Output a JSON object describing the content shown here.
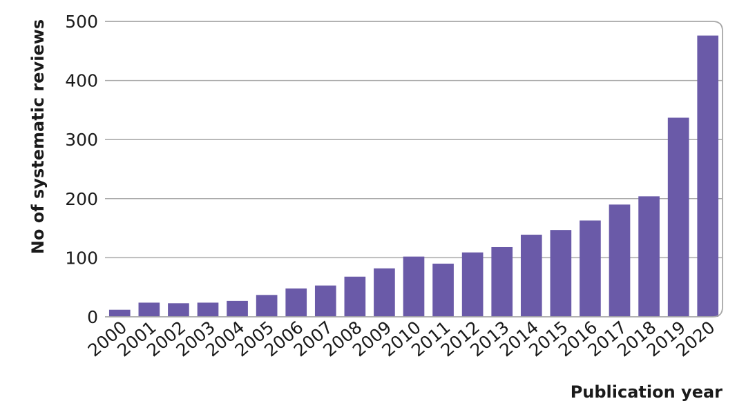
{
  "chart_data": {
    "type": "bar",
    "title": "",
    "xlabel": "Publication year",
    "ylabel": "No of systematic reviews",
    "categories": [
      "2000",
      "2001",
      "2002",
      "2003",
      "2004",
      "2005",
      "2006",
      "2007",
      "2008",
      "2009",
      "2010",
      "2011",
      "2012",
      "2013",
      "2014",
      "2015",
      "2016",
      "2017",
      "2018",
      "2019",
      "2020"
    ],
    "values": [
      12,
      24,
      23,
      24,
      27,
      37,
      48,
      53,
      68,
      82,
      102,
      90,
      109,
      118,
      139,
      147,
      163,
      190,
      204,
      337,
      476
    ],
    "ylim": [
      0,
      500
    ],
    "yticks": [
      0,
      100,
      200,
      300,
      400,
      500
    ],
    "grid": true,
    "legend": "none",
    "colors": {
      "bar": "#6a5aa8",
      "grid": "#a8a8a8",
      "frame": "#a8a8a8"
    }
  }
}
